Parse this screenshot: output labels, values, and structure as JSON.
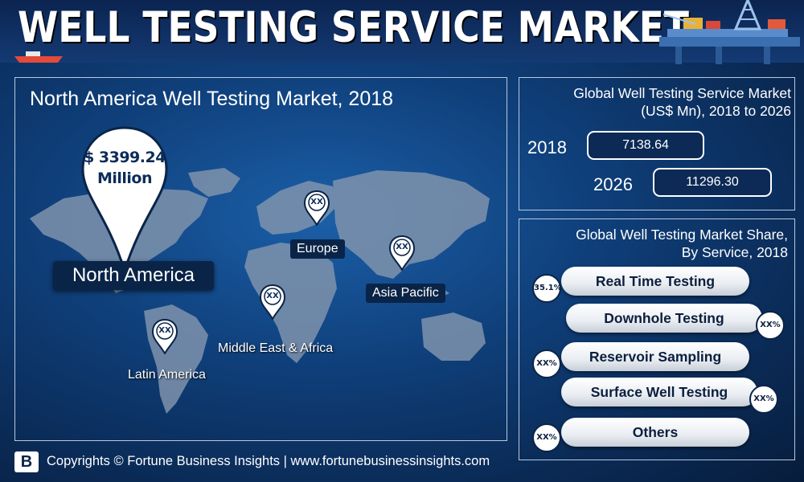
{
  "header": {
    "title": "WELL TESTING SERVICE MARKET"
  },
  "map_panel": {
    "title": "North America Well Testing Market, 2018",
    "highlight": {
      "line1": "$ 3399.24",
      "line2": "Million",
      "region": "North America"
    },
    "regions": [
      {
        "name": "Europe",
        "value": "XX"
      },
      {
        "name": "Asia Pacific",
        "value": "XX"
      },
      {
        "name": "Middle East & Africa",
        "value": "XX"
      },
      {
        "name": "Latin America",
        "value": "XX"
      }
    ]
  },
  "market_panel": {
    "title_line1": "Global Well Testing Service Market",
    "title_line2": "(US$ Mn), 2018 to 2026",
    "rows": [
      {
        "year": "2018",
        "value": "7138.64"
      },
      {
        "year": "2026",
        "value": "11296.30"
      }
    ]
  },
  "share_panel": {
    "title_line1": "Global Well Testing Market Share,",
    "title_line2": "By Service, 2018",
    "items": [
      {
        "label": "Real Time Testing",
        "share": "35.1%"
      },
      {
        "label": "Downhole Testing",
        "share": "XX%"
      },
      {
        "label": "Reservoir Sampling",
        "share": "XX%"
      },
      {
        "label": "Surface Well Testing",
        "share": "XX%"
      },
      {
        "label": "Others",
        "share": "XX%"
      }
    ]
  },
  "footer": {
    "logo": "B",
    "text": "Copyrights © Fortune Business Insights | www.fortunebusinessinsights.com"
  },
  "colors": {
    "background": "#0f3f7a",
    "panel_border": "#b9c8de",
    "dark_label": "#0a2447",
    "map_land": "#7f93ad"
  },
  "icons": [
    "oil-rig-icon",
    "ship-icon",
    "map-pin-icon",
    "company-logo-icon"
  ]
}
